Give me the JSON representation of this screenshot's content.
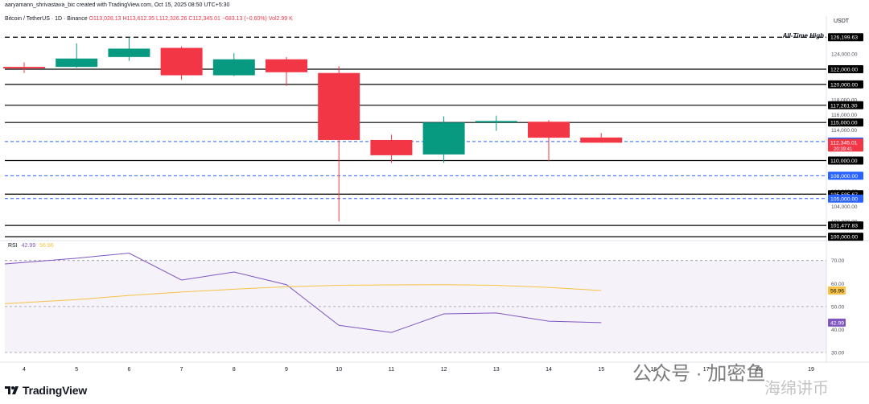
{
  "header": {
    "author_line": "aaryamann_shrivastava_bic created with TradingView.com, Oct 15, 2025 08:50 UTC+5:30",
    "symbol": "Bitcoin / TetherUS · 1D · Binance",
    "ohlc": "O113,028.13 H113,612.35 L112,326.26 C112,345.01 −683.13 (−0.60%) Vol2.99 K",
    "currency": "USDT"
  },
  "chart_data": [
    {
      "type": "candlestick",
      "title": "Bitcoin / TetherUS · 1D · Binance",
      "x_ticks": [
        "4",
        "5",
        "6",
        "7",
        "8",
        "9",
        "10",
        "11",
        "12",
        "13",
        "14",
        "15",
        "16",
        "17",
        "18",
        "19"
      ],
      "ylim": [
        99800,
        127600
      ],
      "y_ticks": [
        102000,
        104000,
        106000,
        108000,
        110000,
        112000,
        114000,
        116000,
        118000,
        120000,
        122000,
        124000,
        126000
      ],
      "y_tick_labels": [
        "102,000.00",
        "104,000.00",
        "106,000.00",
        "108,000.00",
        "110,000.00",
        "112,000.00",
        "114,000.00",
        "116,000.00",
        "118,000.00",
        "120,000.00",
        "122,000.00",
        "124,000.00",
        "126,000.00"
      ],
      "candles": [
        {
          "day": "4",
          "open": 122300,
          "high": 122900,
          "low": 121500,
          "close": 122100
        },
        {
          "day": "5",
          "open": 122300,
          "high": 125400,
          "low": 122200,
          "close": 123400
        },
        {
          "day": "6",
          "open": 123600,
          "high": 126199,
          "low": 123100,
          "close": 124700
        },
        {
          "day": "7",
          "open": 124800,
          "high": 125000,
          "low": 120600,
          "close": 121200
        },
        {
          "day": "8",
          "open": 121200,
          "high": 124100,
          "low": 121100,
          "close": 123300
        },
        {
          "day": "9",
          "open": 123300,
          "high": 123600,
          "low": 119800,
          "close": 121600
        },
        {
          "day": "10",
          "open": 121500,
          "high": 122400,
          "low": 102000,
          "close": 112700
        },
        {
          "day": "11",
          "open": 112700,
          "high": 113400,
          "low": 109700,
          "close": 110700
        },
        {
          "day": "12",
          "open": 110800,
          "high": 115800,
          "low": 109700,
          "close": 115000
        },
        {
          "day": "13",
          "open": 115000,
          "high": 115900,
          "low": 113900,
          "close": 115200
        },
        {
          "day": "14",
          "open": 115100,
          "high": 115300,
          "low": 109900,
          "close": 113000
        },
        {
          "day": "15",
          "open": 113028.13,
          "high": 113612.35,
          "low": 112326.26,
          "close": 112345.01
        }
      ],
      "colors": {
        "up": "#089981",
        "down": "#f23645"
      },
      "levels": [
        {
          "price": 126199.63,
          "label": "126,199.63",
          "style": "dashed-black",
          "note": "All-Time High"
        },
        {
          "price": 122000,
          "label": "122,000.00",
          "style": "solid-black"
        },
        {
          "price": 120000,
          "label": "120,000.00",
          "style": "solid-black"
        },
        {
          "price": 117261.3,
          "label": "117,261.30",
          "style": "solid-black"
        },
        {
          "price": 115000,
          "label": "115,000.00",
          "style": "solid-black"
        },
        {
          "price": 112500,
          "label": "112,500.00",
          "style": "dashed-blue"
        },
        {
          "price": 110000,
          "label": "110,000.00",
          "style": "solid-black"
        },
        {
          "price": 108000,
          "label": "108,000.00",
          "style": "dashed-blue"
        },
        {
          "price": 105585.67,
          "label": "105,585.67",
          "style": "solid-black"
        },
        {
          "price": 105000,
          "label": "105,000.00",
          "style": "dashed-blue"
        },
        {
          "price": 101477.83,
          "label": "101,477.83",
          "style": "solid-black"
        },
        {
          "price": 100000,
          "label": "100,000.00",
          "style": "solid-black"
        }
      ],
      "last_price": {
        "price": 112345.01,
        "label": "112,345.01",
        "countdown": "20:39:41"
      }
    },
    {
      "type": "line",
      "title": "RSI",
      "x_ticks": [
        "4",
        "5",
        "6",
        "7",
        "8",
        "9",
        "10",
        "11",
        "12",
        "13",
        "14",
        "15"
      ],
      "ylim": [
        28,
        72
      ],
      "y_ticks": [
        30,
        40,
        50,
        60,
        70
      ],
      "y_tick_labels": [
        "30.00",
        "40.00",
        "50.00",
        "60.00",
        "70.00"
      ],
      "band": [
        30,
        70
      ],
      "series": [
        {
          "name": "RSI",
          "color": "#7e57c2",
          "values": [
            68.5,
            71,
            73.2,
            61.5,
            65,
            59.5,
            41.8,
            38.7,
            46.8,
            47.2,
            43.6,
            42.99
          ],
          "last_label": "42.99"
        },
        {
          "name": "RSI-MA",
          "color": "#f7c244",
          "values": [
            51.2,
            53,
            54.8,
            56.3,
            57.5,
            58.6,
            59.2,
            59.4,
            59.5,
            59.2,
            58.3,
            56.96
          ],
          "last_label": "56.96"
        }
      ],
      "legend_values": [
        "42.99",
        "56.96"
      ]
    }
  ],
  "annotations": {
    "ath_label": "All-Time High"
  },
  "footer": {
    "brand": "TradingView"
  },
  "watermark": {
    "text": "公众号 · 加密鱼",
    "sub": "海绵讲币"
  }
}
